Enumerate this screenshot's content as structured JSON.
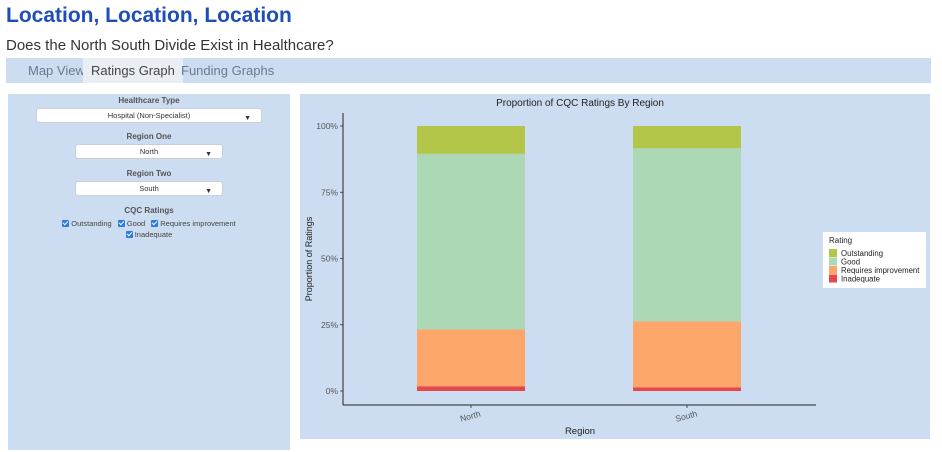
{
  "header": {
    "title": "Location, Location, Location",
    "subtitle": "Does the North South Divide Exist in Healthcare?"
  },
  "tabs": [
    {
      "label": "Map View",
      "active": false
    },
    {
      "label": "Ratings Graph",
      "active": true
    },
    {
      "label": "Funding Graphs",
      "active": false
    }
  ],
  "sidebar": {
    "healthcare_type_label": "Healthcare Type",
    "healthcare_type_value": "Hospital (Non-Specialist)",
    "region_one_label": "Region One",
    "region_one_value": "North",
    "region_two_label": "Region Two",
    "region_two_value": "South",
    "ratings_label": "CQC Ratings",
    "ratings": [
      {
        "label": "Outstanding",
        "checked": true
      },
      {
        "label": "Good",
        "checked": true
      },
      {
        "label": "Requires improvement",
        "checked": true
      },
      {
        "label": "Inadequate",
        "checked": true
      }
    ]
  },
  "chart_data": {
    "type": "bar",
    "stacked": true,
    "title": "Proportion of CQC Ratings By Region",
    "xlabel": "Region",
    "ylabel": "Proportion of Ratings",
    "categories": [
      "North",
      "South"
    ],
    "ylim": [
      0,
      1
    ],
    "yticks": [
      "0%",
      "25%",
      "50%",
      "75%",
      "100%"
    ],
    "legend_title": "Rating",
    "legend_position": "right",
    "series": [
      {
        "name": "Inadequate",
        "color": "#e8474a",
        "values": [
          0.018,
          0.014
        ]
      },
      {
        "name": "Requires improvement",
        "color": "#fca66a",
        "values": [
          0.214,
          0.249
        ]
      },
      {
        "name": "Good",
        "color": "#add8b6",
        "values": [
          0.663,
          0.653
        ]
      },
      {
        "name": "Outstanding",
        "color": "#b3c64a",
        "values": [
          0.105,
          0.084
        ]
      }
    ],
    "legend_order": [
      "Outstanding",
      "Good",
      "Requires improvement",
      "Inadequate"
    ]
  }
}
